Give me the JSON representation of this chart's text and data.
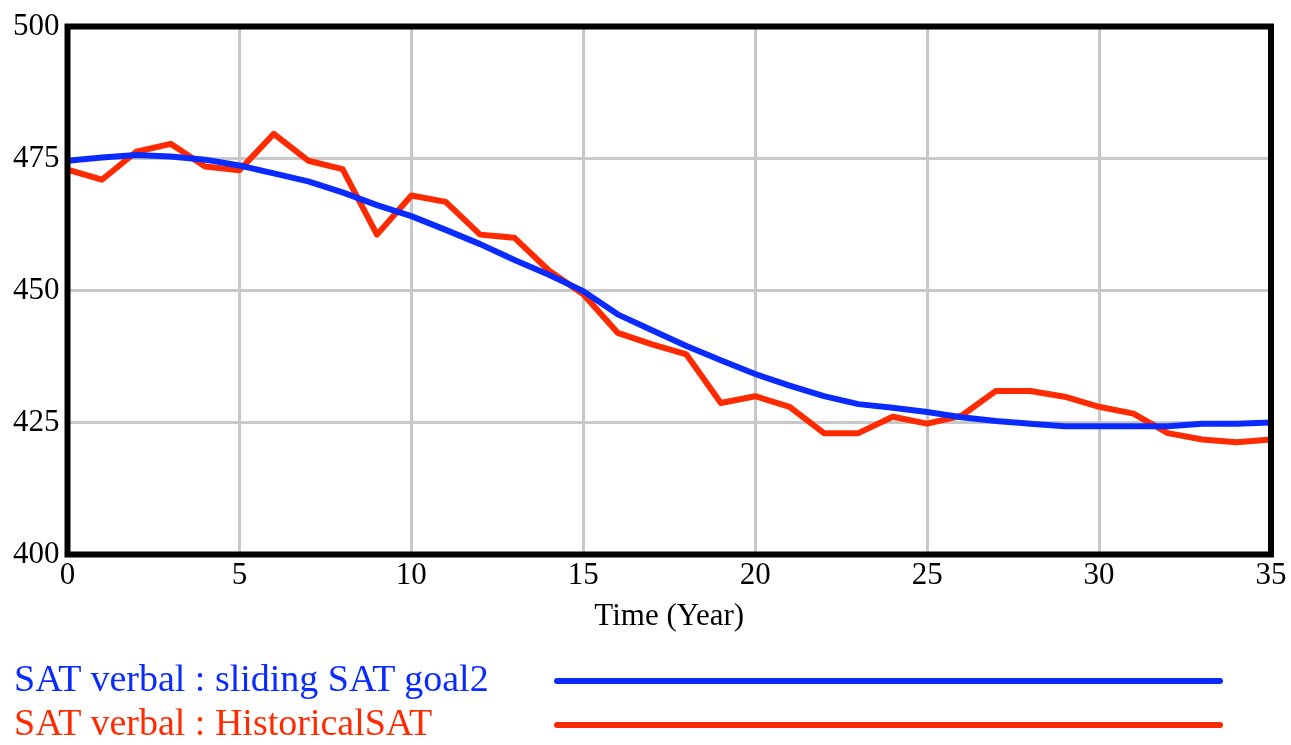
{
  "chart_data": {
    "type": "line",
    "xlabel": "Time (Year)",
    "x": [
      0,
      1,
      2,
      3,
      4,
      5,
      6,
      7,
      8,
      9,
      10,
      11,
      12,
      13,
      14,
      15,
      16,
      17,
      18,
      19,
      20,
      21,
      22,
      23,
      24,
      25,
      26,
      27,
      28,
      29,
      30,
      31,
      32,
      33,
      34,
      35
    ],
    "xlim": [
      0,
      35
    ],
    "xticks": [
      0,
      5,
      10,
      15,
      20,
      25,
      30,
      35
    ],
    "ylim": [
      400,
      500
    ],
    "yticks": [
      400,
      425,
      450,
      475,
      500
    ],
    "grid": true,
    "legend": "bottom",
    "marker": "none",
    "line_style": "solid",
    "series": [
      {
        "name": "SAT verbal : sliding SAT goal2",
        "color": "#0a2bff",
        "values": [
          474.6,
          475.2,
          475.7,
          475.4,
          474.8,
          473.7,
          472.2,
          470.7,
          468.6,
          466.2,
          464.1,
          461.5,
          458.8,
          455.8,
          453,
          449.9,
          445.5,
          442.5,
          439.5,
          436.8,
          434.2,
          432,
          430,
          428.5,
          427.8,
          427,
          426,
          425.3,
          424.8,
          424.3,
          424.3,
          424.3,
          424.3,
          424.8,
          424.8,
          425
        ]
      },
      {
        "name": "SAT verbal : HistoricalSAT",
        "color": "#ff2a00",
        "values": [
          472.9,
          471,
          476.3,
          477.8,
          473.5,
          472.8,
          479.7,
          474.6,
          473,
          460.6,
          468,
          466.8,
          460.6,
          460,
          453.8,
          449.3,
          442,
          439.8,
          437.9,
          428.7,
          430,
          428,
          423,
          423,
          426.1,
          424.8,
          426.3,
          431,
          431,
          429.9,
          428,
          426.7,
          423,
          421.8,
          421.3,
          421.8
        ]
      }
    ]
  }
}
